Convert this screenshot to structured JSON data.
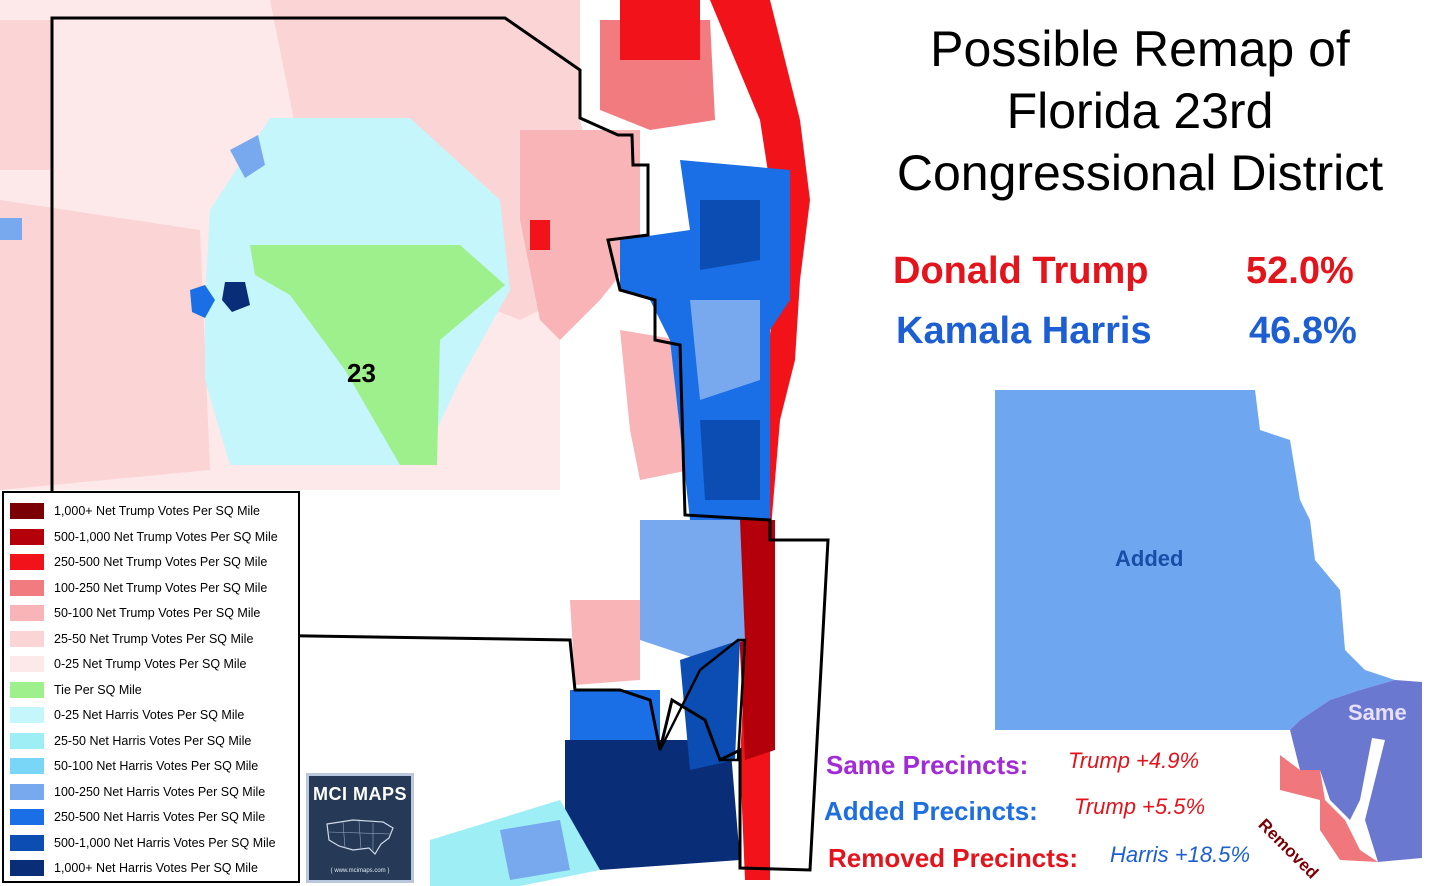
{
  "title": {
    "line1": "Possible Remap of",
    "line2": "Florida 23rd",
    "line3": "Congressional District"
  },
  "results": [
    {
      "name": "Donald Trump",
      "pct": "52.0%",
      "color": "#e3141c"
    },
    {
      "name": "Kamala Harris",
      "pct": "46.8%",
      "color": "#1d5fd3"
    }
  ],
  "district_label": "23",
  "legend": {
    "items": [
      {
        "label": "1,000+ Net Trump Votes Per SQ Mile",
        "color": "#7a0006"
      },
      {
        "label": "500-1,000 Net Trump Votes Per SQ Mile",
        "color": "#b3000b"
      },
      {
        "label": "250-500 Net Trump Votes Per SQ Mile",
        "color": "#f2121a"
      },
      {
        "label": "100-250 Net Trump Votes Per SQ Mile",
        "color": "#f27b80"
      },
      {
        "label": "50-100 Net Trump Votes Per SQ Mile",
        "color": "#f8b4b6"
      },
      {
        "label": "25-50 Net Trump Votes Per SQ Mile",
        "color": "#fbd4d5"
      },
      {
        "label": "0-25 Net Trump Votes Per SQ Mile",
        "color": "#fde9ea"
      },
      {
        "label": "Tie Per SQ Mile",
        "color": "#9ef08c"
      },
      {
        "label": "0-25 Net Harris Votes Per SQ Mile",
        "color": "#c4f6fb"
      },
      {
        "label": "25-50 Net Harris Votes Per SQ Mile",
        "color": "#9eeef6"
      },
      {
        "label": "50-100 Net Harris Votes Per SQ Mile",
        "color": "#7ad6f6"
      },
      {
        "label": "100-250 Net Harris Votes Per SQ Mile",
        "color": "#78a9ef"
      },
      {
        "label": "250-500 Net Harris Votes Per SQ Mile",
        "color": "#1a6fe6"
      },
      {
        "label": "500-1,000 Net Harris Votes Per SQ Mile",
        "color": "#0b4db3"
      },
      {
        "label": "1,000+ Net Harris Votes Per SQ Mile",
        "color": "#0a2d78"
      }
    ]
  },
  "logo": {
    "title": "MCI MAPS",
    "url": "{ www.mcimaps.com }"
  },
  "inset": {
    "added_label": "Added",
    "same_label": "Same",
    "removed_label": "Removed",
    "added_color": "#6ea6f0",
    "same_color": "#6a78d0",
    "removed_color": "#f0787c"
  },
  "stats": [
    {
      "label": "Same Precincts:",
      "value": "Trump +4.9%",
      "label_color": "#a12bd6",
      "value_color": "#e3141c"
    },
    {
      "label": "Added Precincts:",
      "value": "Trump +5.5%",
      "label_color": "#1d6fe0",
      "value_color": "#e3141c"
    },
    {
      "label": "Removed Precincts:",
      "value": "Harris +18.5%",
      "label_color": "#e3141c",
      "value_color": "#1d5fd3"
    }
  ]
}
